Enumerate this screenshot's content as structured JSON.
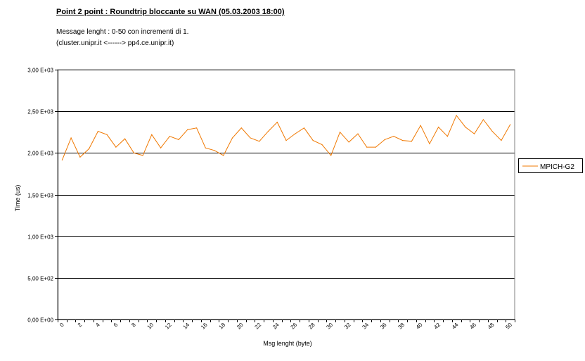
{
  "header": {
    "title": "Point 2 point : Roundtrip bloccante su WAN (05.03.2003 18:00)",
    "note_line1": "Message lenght :  0-50 con incrementi di 1.",
    "note_line2": "(cluster.unipr.it    <------>  pp4.ce.unipr.it)"
  },
  "colors": {
    "series": "#f07800",
    "grid": "#000000",
    "background": "#ffffff"
  },
  "chart_data": {
    "type": "line",
    "title": "Point 2 point : Roundtrip bloccante su WAN (05.03.2003 18:00)",
    "xlabel": "Msg lenght (byte)",
    "ylabel": "Time (us)",
    "ylim": [
      0,
      3000
    ],
    "yticks": [
      0,
      500,
      1000,
      1500,
      2000,
      2500,
      3000
    ],
    "ytick_labels": [
      "0,00 E+00",
      "5,00 E+02",
      "1,00 E+03",
      "1,50 E+03",
      "2,00 E+03",
      "2,50 E+03",
      "3,00 E+03"
    ],
    "xlim": [
      0,
      50
    ],
    "xtick_labels": [
      "0",
      "2",
      "4",
      "6",
      "8",
      "10",
      "12",
      "14",
      "16",
      "18",
      "20",
      "22",
      "24",
      "26",
      "28",
      "30",
      "32",
      "34",
      "36",
      "38",
      "40",
      "42",
      "44",
      "46",
      "48",
      "50"
    ],
    "grid": "horizontal major",
    "legend_position": "right",
    "x": [
      0,
      1,
      2,
      3,
      4,
      5,
      6,
      7,
      8,
      9,
      10,
      11,
      12,
      13,
      14,
      15,
      16,
      17,
      18,
      19,
      20,
      21,
      22,
      23,
      24,
      25,
      26,
      27,
      28,
      29,
      30,
      31,
      32,
      33,
      34,
      35,
      36,
      37,
      38,
      39,
      40,
      41,
      42,
      43,
      44,
      45,
      46,
      47,
      48,
      49,
      50
    ],
    "series": [
      {
        "name": "MPICH-G2",
        "values": [
          1915,
          2180,
          1950,
          2050,
          2260,
          2220,
          2070,
          2170,
          2000,
          1970,
          2220,
          2060,
          2200,
          2160,
          2280,
          2300,
          2060,
          2030,
          1970,
          2180,
          2300,
          2180,
          2140,
          2260,
          2370,
          2150,
          2230,
          2300,
          2150,
          2100,
          1970,
          2250,
          2130,
          2230,
          2070,
          2070,
          2160,
          2200,
          2150,
          2140,
          2330,
          2110,
          2310,
          2200,
          2450,
          2310,
          2230,
          2400,
          2260,
          2150,
          2340
        ]
      }
    ]
  }
}
